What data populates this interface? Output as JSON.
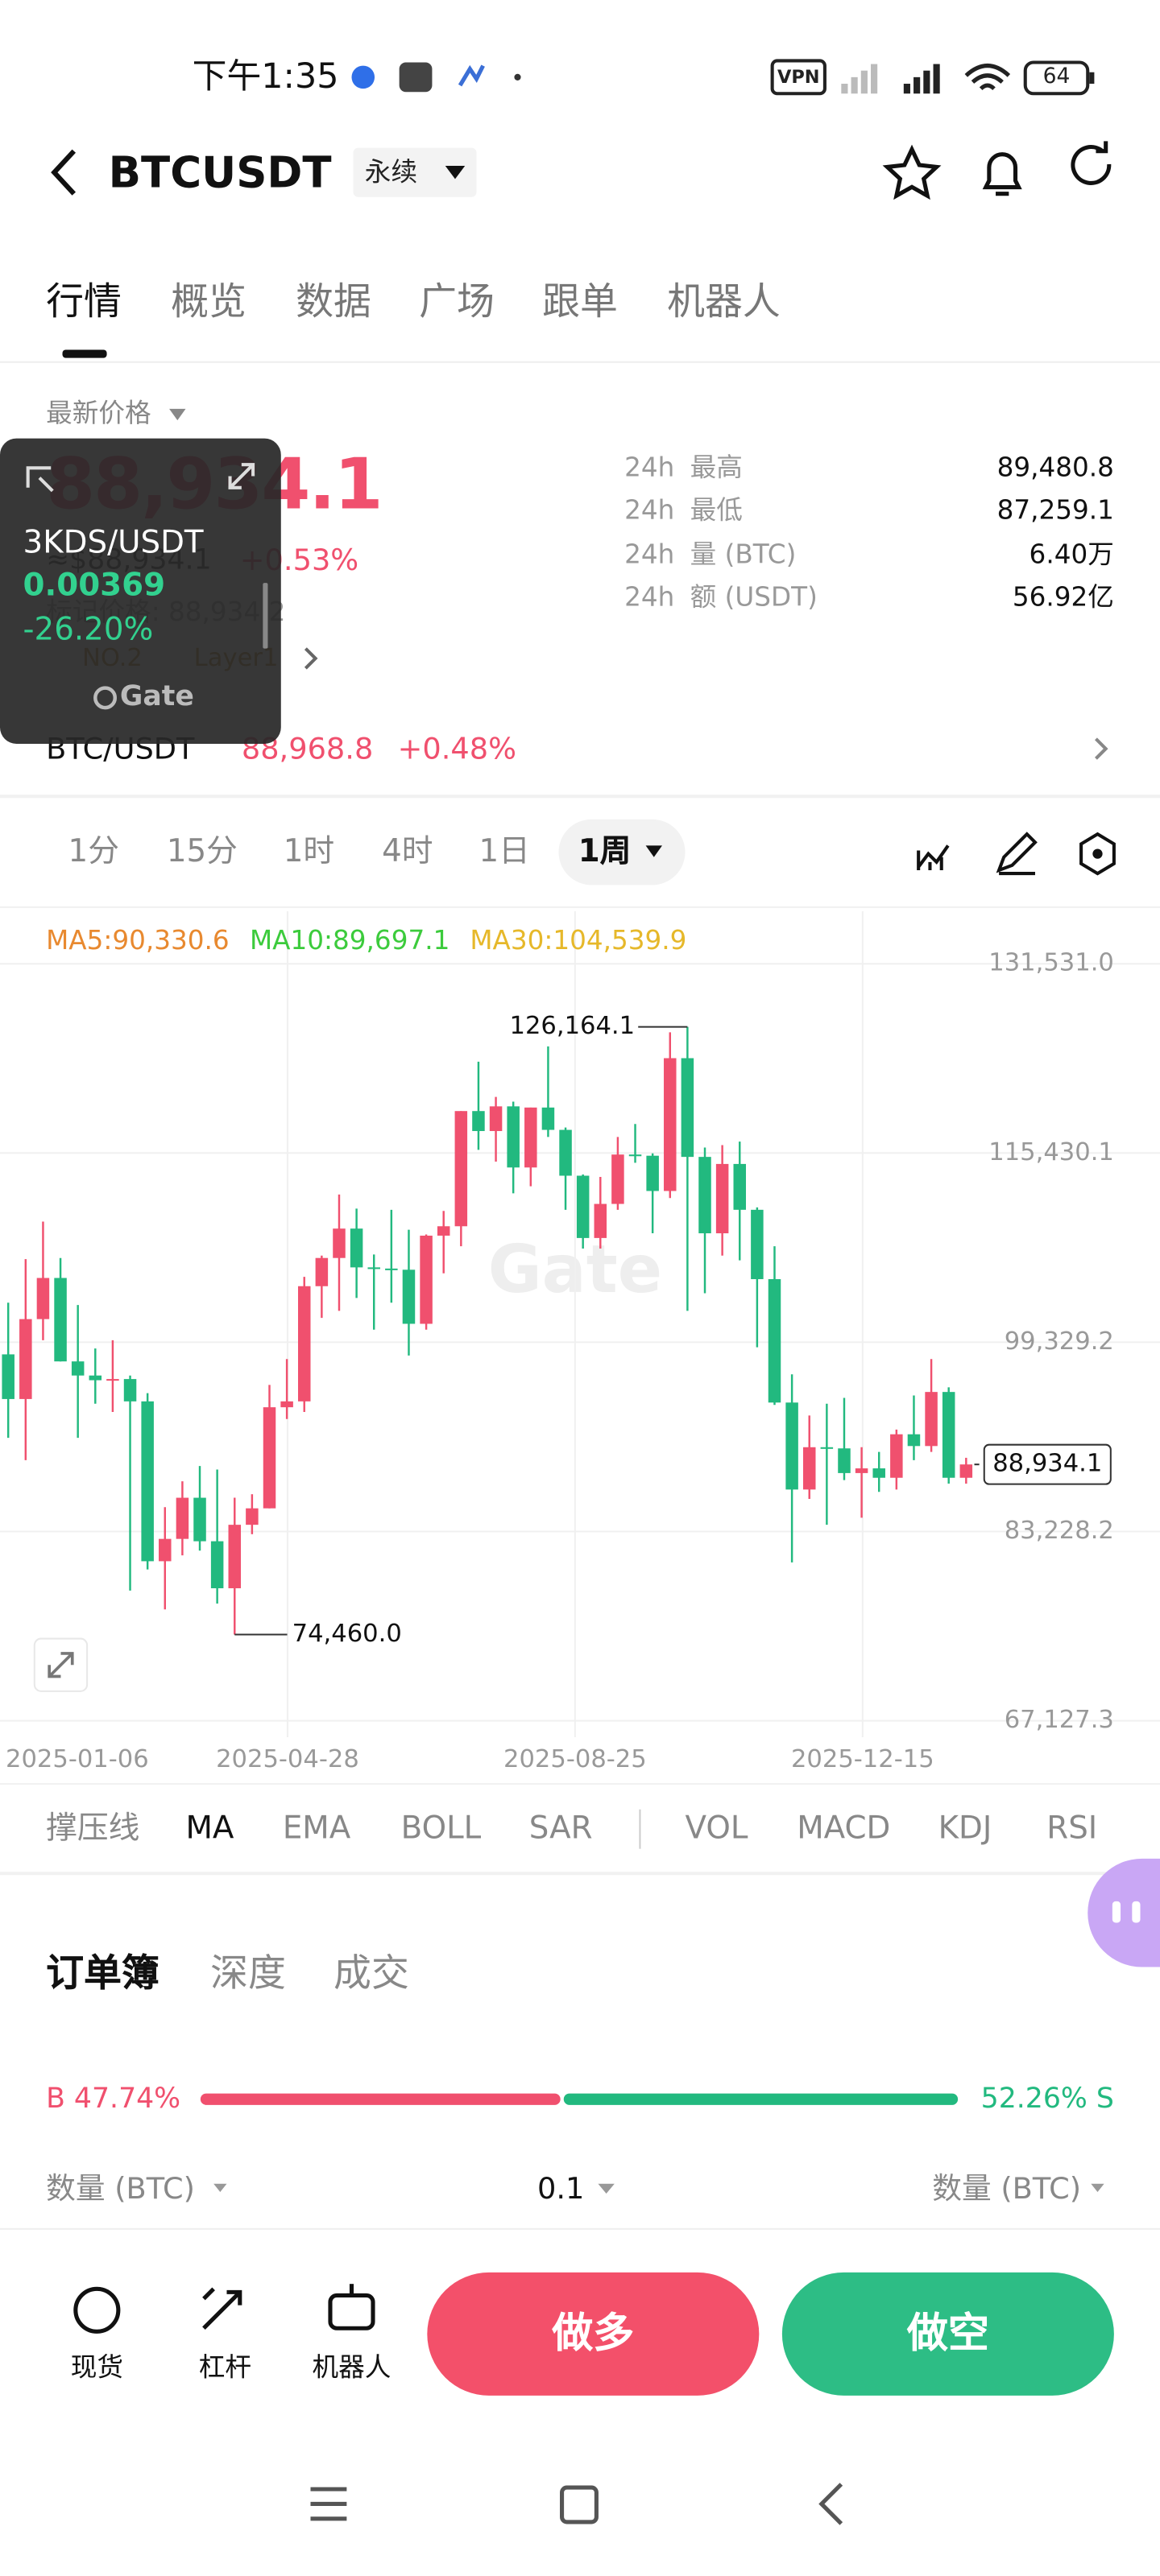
{
  "status_bar": {
    "time": "下午1:35",
    "vpn": "VPN",
    "battery": "64"
  },
  "header": {
    "symbol": "BTCUSDT",
    "contract": "永续"
  },
  "tabs": [
    "行情",
    "概览",
    "数据",
    "广场",
    "跟单",
    "机器人"
  ],
  "price": {
    "label": "最新价格",
    "last": "88,934.1",
    "usd": "≈$88,934.1",
    "change": "+0.53%",
    "mark_price": "标记价格: 88,934.2",
    "tags": [
      "NO.2",
      "Layer1"
    ]
  },
  "stats": [
    {
      "period": "24h",
      "name": "最高",
      "value": "89,480.8"
    },
    {
      "period": "24h",
      "name": "最低",
      "value": "87,259.1"
    },
    {
      "period": "24h",
      "name": "量 (BTC)",
      "value": "6.40万"
    },
    {
      "period": "24h",
      "name": "额 (USDT)",
      "value": "56.92亿"
    }
  ],
  "overlay": {
    "pair": "3KDS/USDT",
    "price": "0.00369",
    "change": "-26.20%",
    "brand": "Gate"
  },
  "spot": {
    "pair": "BTC/USDT",
    "price": "88,968.8",
    "change": "+0.48%"
  },
  "intervals": [
    "1分",
    "15分",
    "1时",
    "4时",
    "1日",
    "1周"
  ],
  "chart": {
    "type": "candlestick",
    "ma": [
      "MA5:90,330.6",
      "MA10:89,697.1",
      "MA30:104,539.9"
    ],
    "watermark": "Gate",
    "ylim": [
      66150,
      135300
    ],
    "yticks": [
      {
        "value": 131531.0,
        "label": "131,531.0"
      },
      {
        "value": 115430.1,
        "label": "115,430.1"
      },
      {
        "value": 99329.2,
        "label": "99,329.2"
      },
      {
        "value": 83228.2,
        "label": "83,228.2"
      },
      {
        "value": 67127.3,
        "label": "67,127.3"
      }
    ],
    "xticks": [
      "2025-01-06",
      "2025-04-28",
      "2025-08-25",
      "2025-12-15"
    ],
    "candles": {
      "open": [
        98300,
        94500,
        101300,
        104800,
        97700,
        96500,
        96100,
        96200,
        94300,
        80700,
        82600,
        86100,
        82400,
        78400,
        83800,
        85200,
        93800,
        94300,
        104100,
        106500,
        109000,
        105700,
        105600,
        105500,
        100900,
        108400,
        109200,
        119000,
        117300,
        119400,
        114200,
        119300,
        117400,
        113500,
        108200,
        111100,
        115300,
        115200,
        112200,
        123500,
        115100,
        108600,
        114500,
        110600,
        104700,
        94200,
        86800,
        90400,
        90300,
        88200,
        88600,
        87800,
        91500,
        90500,
        95100,
        87800
      ],
      "high": [
        102700,
        106400,
        109600,
        106500,
        102500,
        98800,
        99500,
        96500,
        95000,
        85300,
        87500,
        88800,
        88500,
        86100,
        86400,
        95700,
        97900,
        104900,
        106700,
        111900,
        110700,
        106800,
        110600,
        108900,
        108500,
        110500,
        119000,
        123200,
        120200,
        119800,
        119300,
        124500,
        117600,
        113600,
        113400,
        116800,
        117900,
        115400,
        125700,
        126164.1,
        115900,
        116100,
        116400,
        110800,
        107500,
        96600,
        93100,
        94100,
        94600,
        90400,
        90000,
        91900,
        94800,
        97900,
        95500,
        89500
      ],
      "low": [
        91200,
        89300,
        99500,
        97700,
        91200,
        94100,
        93400,
        78200,
        80000,
        76600,
        81200,
        81600,
        77100,
        74460,
        83000,
        85200,
        92800,
        93400,
        101400,
        102000,
        103100,
        100400,
        102700,
        98200,
        100400,
        105200,
        107500,
        115700,
        114700,
        112000,
        112600,
        116800,
        110600,
        107300,
        107300,
        110600,
        114600,
        108600,
        111600,
        102000,
        103500,
        106700,
        106300,
        98900,
        94000,
        80600,
        86000,
        83800,
        87600,
        84400,
        86600,
        86800,
        89300,
        90000,
        87300,
        87300
      ],
      "close": [
        94500,
        101300,
        104800,
        97700,
        96500,
        96100,
        96200,
        94300,
        80700,
        82600,
        86100,
        82400,
        78400,
        83800,
        85200,
        93800,
        94300,
        104100,
        106500,
        109000,
        105700,
        105600,
        105500,
        100900,
        108400,
        109200,
        119000,
        117300,
        119400,
        114200,
        119300,
        117400,
        113500,
        108200,
        111100,
        115300,
        115200,
        112200,
        123500,
        115100,
        108600,
        114500,
        110600,
        104700,
        94200,
        86800,
        90400,
        90300,
        88200,
        88600,
        87800,
        91500,
        90500,
        95100,
        87800,
        88934.1
      ]
    },
    "high_label": "126,164.1",
    "low_label": "74,460.0",
    "last_label": "88,934.1"
  },
  "indicators": [
    "撑压线",
    "MA",
    "EMA",
    "BOLL",
    "SAR",
    "VOL",
    "MACD",
    "KDJ",
    "RSI"
  ],
  "orderbook": {
    "tabs": [
      "订单簿",
      "深度",
      "成交"
    ],
    "buy": 47.74,
    "buy_label": "B 47.74%",
    "sell": 52.26,
    "sell_label": "52.26% S",
    "qty_left": "数量 (BTC)",
    "step": "0.1",
    "qty_right": "数量 (BTC)"
  },
  "bottom": {
    "items": [
      "现货",
      "杠杆",
      "机器人"
    ],
    "long": "做多",
    "short": "做空"
  }
}
